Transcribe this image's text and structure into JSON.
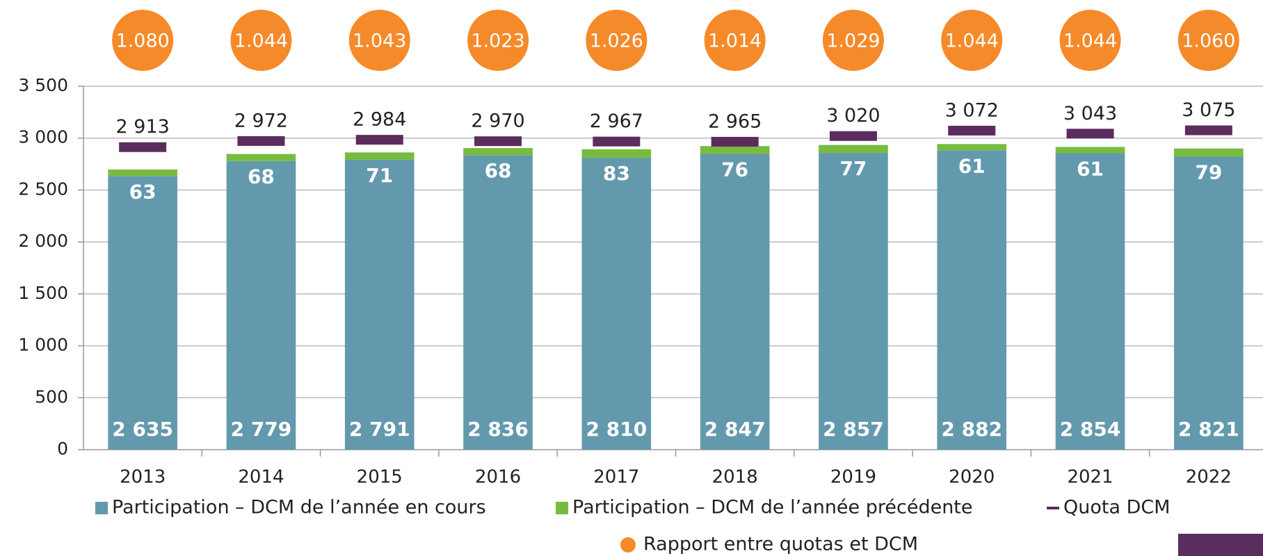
{
  "chart_data": {
    "type": "bar",
    "stacked": true,
    "categories": [
      "2013",
      "2014",
      "2015",
      "2016",
      "2017",
      "2018",
      "2019",
      "2020",
      "2021",
      "2022"
    ],
    "ylim": [
      0,
      3500
    ],
    "yticks": [
      0,
      500,
      {
        "value": 1000,
        "label": "1 000"
      },
      {
        "value": 1500,
        "label": "1 500"
      },
      {
        "value": 2000,
        "label": "2 000"
      },
      {
        "value": 2500,
        "label": "2 500"
      },
      {
        "value": 3000,
        "label": "3 000"
      },
      {
        "value": 3500,
        "label": "3 500"
      }
    ],
    "grid": true,
    "series": [
      {
        "name": "Participation – DCM de l’année en cours",
        "color": "#6399ad",
        "type": "bar",
        "values": [
          2635,
          2779,
          2791,
          2836,
          2810,
          2847,
          2857,
          2882,
          2854,
          2821
        ],
        "value_labels": [
          "2 635",
          "2 779",
          "2 791",
          "2 836",
          "2 810",
          "2 847",
          "2 857",
          "2 882",
          "2 854",
          "2 821"
        ]
      },
      {
        "name": "Participation – DCM de l’année précédente",
        "color": "#77bc3f",
        "type": "bar",
        "values": [
          63,
          68,
          71,
          68,
          83,
          76,
          77,
          61,
          61,
          79
        ]
      },
      {
        "name": "Quota DCM",
        "color": "#5b2c5e",
        "type": "marker",
        "values": [
          2913,
          2972,
          2984,
          2970,
          2967,
          2965,
          3020,
          3072,
          3043,
          3075
        ],
        "value_labels": [
          "2 913",
          "2 972",
          "2 984",
          "2 970",
          "2 967",
          "2 965",
          "3 020",
          "3 072",
          "3 043",
          "3 075"
        ]
      },
      {
        "name": "Rapport entre quotas et DCM",
        "color": "#f58a2a",
        "type": "bubble",
        "values": [
          1.08,
          1.044,
          1.043,
          1.023,
          1.026,
          1.014,
          1.029,
          1.044,
          1.044,
          1.06
        ],
        "value_labels": [
          "1.080",
          "1.044",
          "1.043",
          "1.023",
          "1.026",
          "1.014",
          "1.029",
          "1.044",
          "1.044",
          "1.060"
        ]
      }
    ]
  }
}
